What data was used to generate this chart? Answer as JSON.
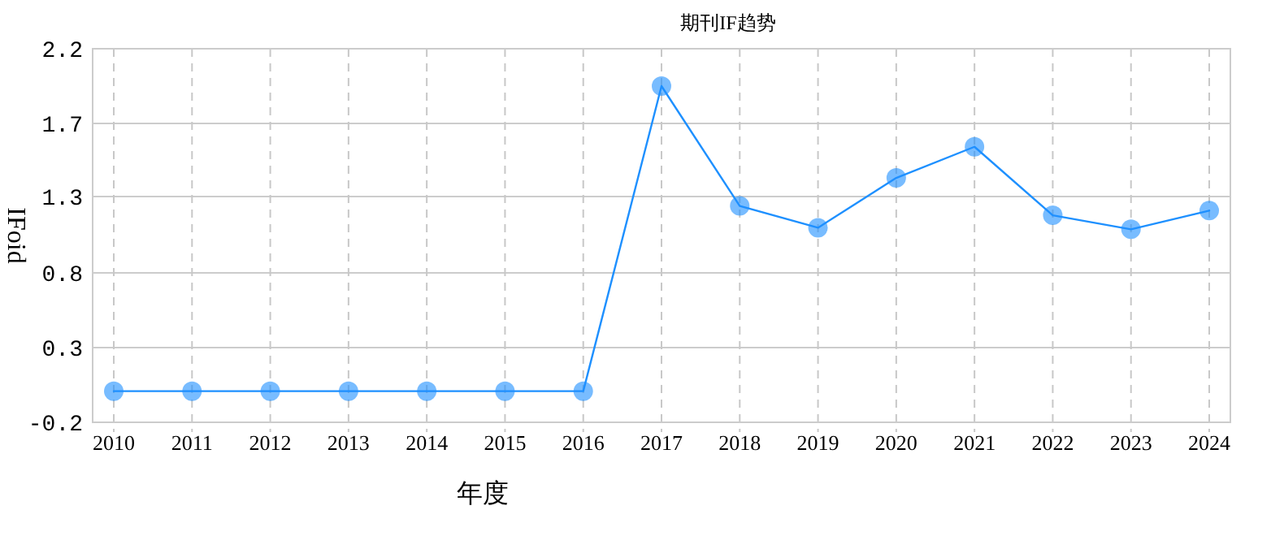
{
  "chart_data": {
    "type": "line",
    "title": "期刊IF趋势",
    "xlabel": "年度",
    "ylabel": "IFoid",
    "categories": [
      "2010",
      "2011",
      "2012",
      "2013",
      "2014",
      "2015",
      "2016",
      "2017",
      "2018",
      "2019",
      "2020",
      "2021",
      "2022",
      "2023",
      "2024"
    ],
    "series": [
      {
        "color": "#1e90ff",
        "values": [
          0,
          0,
          0,
          0,
          0,
          0,
          0,
          1.96,
          1.19,
          1.05,
          1.37,
          1.57,
          1.13,
          1.04,
          1.16
        ]
      }
    ],
    "ylim": [
      -0.2,
      2.2
    ],
    "yticks": [
      -0.2,
      {
        "value": 0.28,
        "label": "0.3"
      },
      {
        "value": 0.76,
        "label": "0.8"
      },
      {
        "value": 1.25,
        "label": "1.3"
      },
      {
        "value": 1.72,
        "label": "1.7"
      },
      2.2
    ],
    "grid": true,
    "marker": "circle",
    "line_style": "solid"
  }
}
